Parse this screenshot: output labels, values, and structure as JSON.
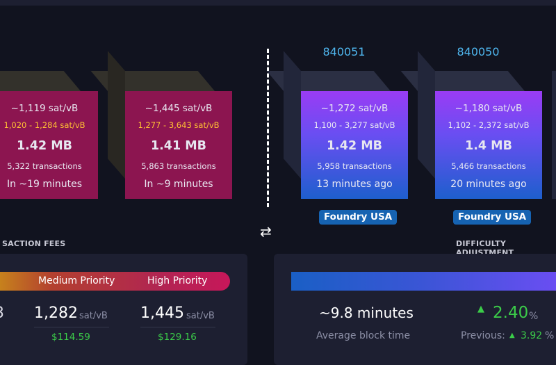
{
  "pending_blocks": [
    {
      "fee": "~1,119 sat/vB",
      "range": "1,020 - 1,284 sat/vB",
      "size": "1.42 MB",
      "tx": "5,322 transactions",
      "eta": "In ~19 minutes"
    },
    {
      "fee": "~1,445 sat/vB",
      "range": "1,277 - 3,643 sat/vB",
      "size": "1.41 MB",
      "tx": "5,863 transactions",
      "eta": "In ~9 minutes"
    }
  ],
  "mined_blocks": [
    {
      "height": "840051",
      "fee": "~1,272 sat/vB",
      "range": "1,100 - 3,277 sat/vB",
      "size": "1.42 MB",
      "tx": "5,958 transactions",
      "ago": "13 minutes ago",
      "pool": "Foundry USA"
    },
    {
      "height": "840050",
      "fee": "~1,180 sat/vB",
      "range": "1,102 - 2,372 sat/vB",
      "size": "1.4 MB",
      "tx": "5,466 transactions",
      "ago": "20 minutes ago",
      "pool": "Foundry USA"
    }
  ],
  "swap_icon": "swap-arrows-icon",
  "fees_section": {
    "title": "SACTION FEES",
    "labels": {
      "medium": "Medium Priority",
      "high": "High Priority"
    },
    "partial_fragment": "3",
    "medium": {
      "value": "1,282",
      "unit": "sat/vB",
      "usd": "$114.59"
    },
    "high": {
      "value": "1,445",
      "unit": "sat/vB",
      "usd": "$129.16"
    }
  },
  "difficulty_section": {
    "title": "DIFFICULTY ADJUSTMENT",
    "avg_block_time": "~9.8 minutes",
    "avg_block_time_label": "Average block time",
    "change_arrow": "▲",
    "change_value": "2.40",
    "change_unit": "%",
    "previous_label": "Previous:",
    "previous_value": "3.92",
    "previous_unit": "%"
  },
  "colors": {
    "background": "#11131f",
    "card": "#1d1f31",
    "pending": "#8c1550",
    "accent_blue": "#4fb6ee",
    "green": "#3bcc49",
    "pool_badge": "#1663b2"
  }
}
